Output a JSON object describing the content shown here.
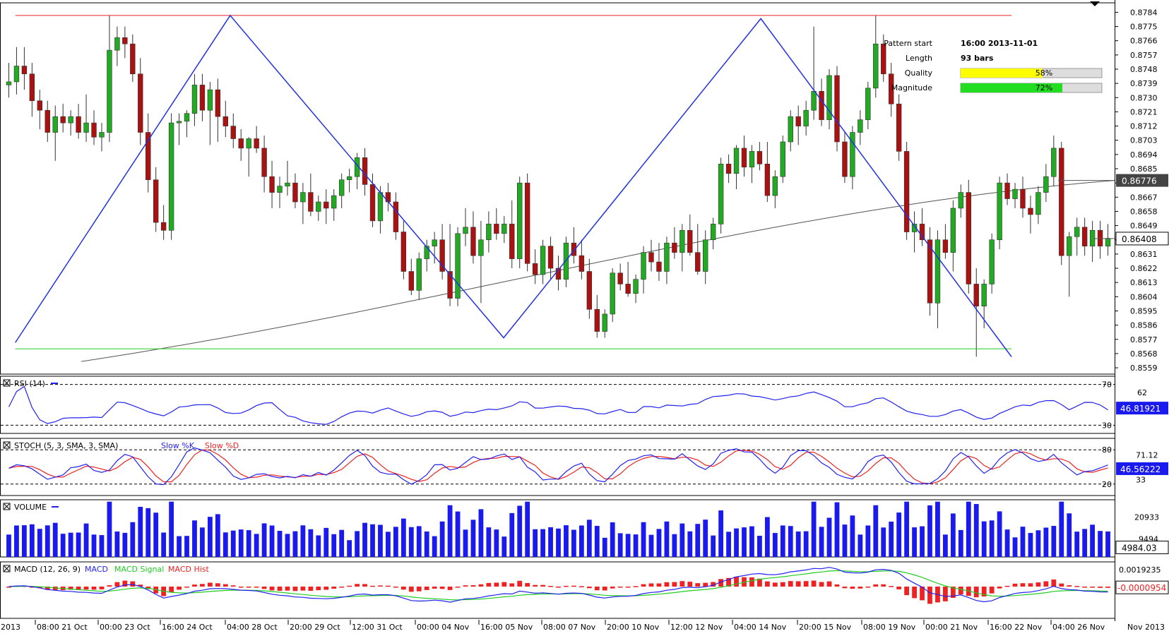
{
  "chart_data": {
    "type": "candlestick",
    "price_axis": {
      "ticks": [
        "0.8784",
        "0.8775",
        "0.8766",
        "0.8757",
        "0.8748",
        "0.8739",
        "0.8730",
        "0.8721",
        "0.8712",
        "0.8703",
        "0.8694",
        "0.8685",
        "0.8676",
        "0.8667",
        "0.8658",
        "0.8649",
        "0.8640",
        "0.8631",
        "0.8622",
        "0.8613",
        "0.8604",
        "0.8595",
        "0.8586",
        "0.8577",
        "0.8568",
        "0.8559"
      ],
      "range": [
        0.8555,
        0.879
      ],
      "current_price_label": "0.86408",
      "ma_label": "0.86776"
    },
    "time_axis": {
      "labels": [
        "2013",
        "08:00 21 Oct",
        "00:00 23 Oct",
        "16:00 24 Oct",
        "04:00 28 Oct",
        "20:00 29 Oct",
        "12:00 31 Oct",
        "00:00 04 Nov",
        "16:00 05 Nov",
        "08:00 07 Nov",
        "20:00 10 Nov",
        "12:00 12 Nov",
        "04:00 14 Nov",
        "20:00 15 Nov",
        "08:00 19 Nov",
        "00:00 21 Nov",
        "16:00 22 Nov",
        "04:00 26 Nov",
        "Nov 2013"
      ]
    },
    "pattern_info": {
      "rows": [
        {
          "label": "Pattern start",
          "value": "16:00 2013-11-01"
        },
        {
          "label": "Length",
          "value": "93 bars"
        },
        {
          "label": "Quality",
          "value": "58%",
          "fraction": 0.58,
          "color": "#ffff00"
        },
        {
          "label": "Magnitude",
          "value": "72%",
          "fraction": 0.72,
          "color": "#22dd22"
        }
      ]
    },
    "pattern": {
      "resistance": 0.8782,
      "support": 0.8571,
      "points": [
        [
          0.2,
          0.8575
        ],
        [
          6.8,
          0.8782
        ],
        [
          15.2,
          0.8578
        ],
        [
          23.1,
          0.878
        ],
        [
          30.8,
          0.8566
        ]
      ]
    },
    "candles": [
      {
        "o": 0.8738,
        "h": 0.8752,
        "l": 0.873,
        "c": 0.874
      },
      {
        "o": 0.874,
        "h": 0.8762,
        "l": 0.8732,
        "c": 0.875
      },
      {
        "o": 0.875,
        "h": 0.8762,
        "l": 0.8735,
        "c": 0.8745
      },
      {
        "o": 0.8745,
        "h": 0.8752,
        "l": 0.8718,
        "c": 0.8728
      },
      {
        "o": 0.8728,
        "h": 0.8735,
        "l": 0.871,
        "c": 0.8722
      },
      {
        "o": 0.8722,
        "h": 0.8728,
        "l": 0.8702,
        "c": 0.8708
      },
      {
        "o": 0.8708,
        "h": 0.8725,
        "l": 0.869,
        "c": 0.8718
      },
      {
        "o": 0.8718,
        "h": 0.8726,
        "l": 0.8708,
        "c": 0.8714
      },
      {
        "o": 0.8714,
        "h": 0.8722,
        "l": 0.8706,
        "c": 0.8718
      },
      {
        "o": 0.8718,
        "h": 0.8726,
        "l": 0.8704,
        "c": 0.8708
      },
      {
        "o": 0.8708,
        "h": 0.8732,
        "l": 0.8702,
        "c": 0.8714
      },
      {
        "o": 0.8714,
        "h": 0.8722,
        "l": 0.87,
        "c": 0.8705
      },
      {
        "o": 0.8705,
        "h": 0.8714,
        "l": 0.8696,
        "c": 0.8708
      },
      {
        "o": 0.8708,
        "h": 0.8782,
        "l": 0.8702,
        "c": 0.876
      },
      {
        "o": 0.876,
        "h": 0.8775,
        "l": 0.875,
        "c": 0.8768
      },
      {
        "o": 0.8768,
        "h": 0.8775,
        "l": 0.8755,
        "c": 0.8764
      },
      {
        "o": 0.8764,
        "h": 0.877,
        "l": 0.874,
        "c": 0.8745
      },
      {
        "o": 0.8745,
        "h": 0.8755,
        "l": 0.87,
        "c": 0.8708
      },
      {
        "o": 0.8708,
        "h": 0.872,
        "l": 0.867,
        "c": 0.8678
      },
      {
        "o": 0.8678,
        "h": 0.8686,
        "l": 0.8645,
        "c": 0.8651
      },
      {
        "o": 0.8651,
        "h": 0.8662,
        "l": 0.864,
        "c": 0.8646
      },
      {
        "o": 0.8646,
        "h": 0.872,
        "l": 0.864,
        "c": 0.8714
      },
      {
        "o": 0.8714,
        "h": 0.872,
        "l": 0.87,
        "c": 0.8715
      },
      {
        "o": 0.8715,
        "h": 0.8722,
        "l": 0.8705,
        "c": 0.872
      },
      {
        "o": 0.872,
        "h": 0.8745,
        "l": 0.8712,
        "c": 0.8738
      },
      {
        "o": 0.8738,
        "h": 0.8745,
        "l": 0.8715,
        "c": 0.8722
      },
      {
        "o": 0.8722,
        "h": 0.874,
        "l": 0.87,
        "c": 0.8735
      },
      {
        "o": 0.8735,
        "h": 0.8742,
        "l": 0.8702,
        "c": 0.8718
      },
      {
        "o": 0.8718,
        "h": 0.8728,
        "l": 0.8705,
        "c": 0.8712
      },
      {
        "o": 0.8712,
        "h": 0.872,
        "l": 0.8698,
        "c": 0.8704
      },
      {
        "o": 0.8704,
        "h": 0.871,
        "l": 0.869,
        "c": 0.8698
      },
      {
        "o": 0.8698,
        "h": 0.8705,
        "l": 0.868,
        "c": 0.8704
      },
      {
        "o": 0.8704,
        "h": 0.8712,
        "l": 0.8695,
        "c": 0.8698
      },
      {
        "o": 0.8698,
        "h": 0.8706,
        "l": 0.867,
        "c": 0.868
      },
      {
        "o": 0.868,
        "h": 0.869,
        "l": 0.866,
        "c": 0.867
      },
      {
        "o": 0.867,
        "h": 0.868,
        "l": 0.866,
        "c": 0.8674
      },
      {
        "o": 0.8674,
        "h": 0.869,
        "l": 0.8668,
        "c": 0.8676
      },
      {
        "o": 0.8676,
        "h": 0.8682,
        "l": 0.866,
        "c": 0.8664
      },
      {
        "o": 0.8664,
        "h": 0.8676,
        "l": 0.865,
        "c": 0.867
      },
      {
        "o": 0.867,
        "h": 0.8682,
        "l": 0.8655,
        "c": 0.8658
      },
      {
        "o": 0.8658,
        "h": 0.8668,
        "l": 0.8652,
        "c": 0.8664
      },
      {
        "o": 0.8664,
        "h": 0.8672,
        "l": 0.865,
        "c": 0.866
      },
      {
        "o": 0.866,
        "h": 0.8672,
        "l": 0.8652,
        "c": 0.8668
      },
      {
        "o": 0.8668,
        "h": 0.8682,
        "l": 0.866,
        "c": 0.8678
      },
      {
        "o": 0.8678,
        "h": 0.8685,
        "l": 0.867,
        "c": 0.868
      },
      {
        "o": 0.868,
        "h": 0.8695,
        "l": 0.8672,
        "c": 0.8692
      },
      {
        "o": 0.8692,
        "h": 0.8698,
        "l": 0.8668,
        "c": 0.8675
      },
      {
        "o": 0.8675,
        "h": 0.8682,
        "l": 0.8648,
        "c": 0.8652
      },
      {
        "o": 0.8652,
        "h": 0.8674,
        "l": 0.8644,
        "c": 0.867
      },
      {
        "o": 0.867,
        "h": 0.8676,
        "l": 0.8658,
        "c": 0.8664
      },
      {
        "o": 0.8664,
        "h": 0.867,
        "l": 0.864,
        "c": 0.8645
      },
      {
        "o": 0.8645,
        "h": 0.8652,
        "l": 0.8615,
        "c": 0.862
      },
      {
        "o": 0.862,
        "h": 0.8628,
        "l": 0.8605,
        "c": 0.8608
      },
      {
        "o": 0.8608,
        "h": 0.8632,
        "l": 0.8602,
        "c": 0.8628
      },
      {
        "o": 0.8628,
        "h": 0.864,
        "l": 0.862,
        "c": 0.8636
      },
      {
        "o": 0.8636,
        "h": 0.8645,
        "l": 0.8625,
        "c": 0.864
      },
      {
        "o": 0.864,
        "h": 0.865,
        "l": 0.8615,
        "c": 0.862
      },
      {
        "o": 0.862,
        "h": 0.865,
        "l": 0.8598,
        "c": 0.8603
      },
      {
        "o": 0.8603,
        "h": 0.8648,
        "l": 0.8598,
        "c": 0.8644
      },
      {
        "o": 0.8644,
        "h": 0.866,
        "l": 0.8636,
        "c": 0.8648
      },
      {
        "o": 0.8648,
        "h": 0.8658,
        "l": 0.8625,
        "c": 0.863
      },
      {
        "o": 0.863,
        "h": 0.8652,
        "l": 0.86,
        "c": 0.864
      },
      {
        "o": 0.864,
        "h": 0.8658,
        "l": 0.8632,
        "c": 0.865
      },
      {
        "o": 0.865,
        "h": 0.866,
        "l": 0.864,
        "c": 0.8644
      },
      {
        "o": 0.8644,
        "h": 0.8655,
        "l": 0.8638,
        "c": 0.865
      },
      {
        "o": 0.865,
        "h": 0.8665,
        "l": 0.8622,
        "c": 0.8628
      },
      {
        "o": 0.8628,
        "h": 0.868,
        "l": 0.8622,
        "c": 0.8676
      },
      {
        "o": 0.8676,
        "h": 0.8682,
        "l": 0.862,
        "c": 0.8625
      },
      {
        "o": 0.8625,
        "h": 0.8634,
        "l": 0.8612,
        "c": 0.8618
      },
      {
        "o": 0.8618,
        "h": 0.864,
        "l": 0.8612,
        "c": 0.8636
      },
      {
        "o": 0.8636,
        "h": 0.8642,
        "l": 0.8615,
        "c": 0.8622
      },
      {
        "o": 0.8622,
        "h": 0.863,
        "l": 0.8608,
        "c": 0.8615
      },
      {
        "o": 0.8615,
        "h": 0.8642,
        "l": 0.861,
        "c": 0.8638
      },
      {
        "o": 0.8638,
        "h": 0.8648,
        "l": 0.8625,
        "c": 0.863
      },
      {
        "o": 0.863,
        "h": 0.864,
        "l": 0.8615,
        "c": 0.862
      },
      {
        "o": 0.862,
        "h": 0.8628,
        "l": 0.859,
        "c": 0.8596
      },
      {
        "o": 0.8596,
        "h": 0.8605,
        "l": 0.8578,
        "c": 0.8582
      },
      {
        "o": 0.8582,
        "h": 0.8596,
        "l": 0.8578,
        "c": 0.8593
      },
      {
        "o": 0.8593,
        "h": 0.8622,
        "l": 0.8588,
        "c": 0.8619
      },
      {
        "o": 0.8619,
        "h": 0.8625,
        "l": 0.8608,
        "c": 0.8612
      },
      {
        "o": 0.8612,
        "h": 0.8626,
        "l": 0.8604,
        "c": 0.8606
      },
      {
        "o": 0.8606,
        "h": 0.8618,
        "l": 0.86,
        "c": 0.8615
      },
      {
        "o": 0.8615,
        "h": 0.8636,
        "l": 0.8606,
        "c": 0.8632
      },
      {
        "o": 0.8632,
        "h": 0.864,
        "l": 0.862,
        "c": 0.8626
      },
      {
        "o": 0.8626,
        "h": 0.8638,
        "l": 0.8614,
        "c": 0.862
      },
      {
        "o": 0.862,
        "h": 0.8642,
        "l": 0.8612,
        "c": 0.8638
      },
      {
        "o": 0.8638,
        "h": 0.8648,
        "l": 0.8628,
        "c": 0.8632
      },
      {
        "o": 0.8632,
        "h": 0.865,
        "l": 0.862,
        "c": 0.8646
      },
      {
        "o": 0.8646,
        "h": 0.8656,
        "l": 0.863,
        "c": 0.8632
      },
      {
        "o": 0.8632,
        "h": 0.865,
        "l": 0.8618,
        "c": 0.862
      },
      {
        "o": 0.862,
        "h": 0.8646,
        "l": 0.8612,
        "c": 0.864
      },
      {
        "o": 0.864,
        "h": 0.8654,
        "l": 0.8634,
        "c": 0.865
      },
      {
        "o": 0.865,
        "h": 0.8692,
        "l": 0.8644,
        "c": 0.8688
      },
      {
        "o": 0.8688,
        "h": 0.8694,
        "l": 0.8676,
        "c": 0.8682
      },
      {
        "o": 0.8682,
        "h": 0.87,
        "l": 0.8672,
        "c": 0.8698
      },
      {
        "o": 0.8698,
        "h": 0.8706,
        "l": 0.868,
        "c": 0.8686
      },
      {
        "o": 0.8686,
        "h": 0.87,
        "l": 0.8676,
        "c": 0.8696
      },
      {
        "o": 0.8696,
        "h": 0.8702,
        "l": 0.8684,
        "c": 0.8688
      },
      {
        "o": 0.8688,
        "h": 0.8702,
        "l": 0.8664,
        "c": 0.8668
      },
      {
        "o": 0.8668,
        "h": 0.8684,
        "l": 0.866,
        "c": 0.868
      },
      {
        "o": 0.868,
        "h": 0.8706,
        "l": 0.8676,
        "c": 0.8702
      },
      {
        "o": 0.8702,
        "h": 0.8722,
        "l": 0.8696,
        "c": 0.8718
      },
      {
        "o": 0.8718,
        "h": 0.8725,
        "l": 0.87,
        "c": 0.8712
      },
      {
        "o": 0.8712,
        "h": 0.8728,
        "l": 0.8706,
        "c": 0.8722
      },
      {
        "o": 0.8722,
        "h": 0.8775,
        "l": 0.8716,
        "c": 0.8734
      },
      {
        "o": 0.8734,
        "h": 0.8742,
        "l": 0.8712,
        "c": 0.8716
      },
      {
        "o": 0.8716,
        "h": 0.8748,
        "l": 0.871,
        "c": 0.8744
      },
      {
        "o": 0.8744,
        "h": 0.875,
        "l": 0.8696,
        "c": 0.8702
      },
      {
        "o": 0.8702,
        "h": 0.8708,
        "l": 0.8676,
        "c": 0.868
      },
      {
        "o": 0.868,
        "h": 0.8712,
        "l": 0.8672,
        "c": 0.8708
      },
      {
        "o": 0.8708,
        "h": 0.8722,
        "l": 0.87,
        "c": 0.8716
      },
      {
        "o": 0.8716,
        "h": 0.874,
        "l": 0.871,
        "c": 0.8736
      },
      {
        "o": 0.8736,
        "h": 0.8782,
        "l": 0.873,
        "c": 0.8764
      },
      {
        "o": 0.8764,
        "h": 0.877,
        "l": 0.874,
        "c": 0.8745
      },
      {
        "o": 0.8745,
        "h": 0.8752,
        "l": 0.8718,
        "c": 0.8726
      },
      {
        "o": 0.8726,
        "h": 0.8732,
        "l": 0.869,
        "c": 0.8696
      },
      {
        "o": 0.8696,
        "h": 0.8702,
        "l": 0.864,
        "c": 0.8645
      },
      {
        "o": 0.8645,
        "h": 0.8658,
        "l": 0.8632,
        "c": 0.865
      },
      {
        "o": 0.865,
        "h": 0.866,
        "l": 0.8636,
        "c": 0.864
      },
      {
        "o": 0.864,
        "h": 0.8648,
        "l": 0.8592,
        "c": 0.86
      },
      {
        "o": 0.86,
        "h": 0.8646,
        "l": 0.8584,
        "c": 0.864
      },
      {
        "o": 0.864,
        "h": 0.865,
        "l": 0.8628,
        "c": 0.8632
      },
      {
        "o": 0.8632,
        "h": 0.8665,
        "l": 0.862,
        "c": 0.866
      },
      {
        "o": 0.866,
        "h": 0.8675,
        "l": 0.8654,
        "c": 0.867
      },
      {
        "o": 0.867,
        "h": 0.8678,
        "l": 0.8606,
        "c": 0.8612
      },
      {
        "o": 0.8612,
        "h": 0.8622,
        "l": 0.8566,
        "c": 0.8598
      },
      {
        "o": 0.8598,
        "h": 0.8615,
        "l": 0.8584,
        "c": 0.8612
      },
      {
        "o": 0.8612,
        "h": 0.8644,
        "l": 0.8606,
        "c": 0.864
      },
      {
        "o": 0.864,
        "h": 0.868,
        "l": 0.8634,
        "c": 0.8676
      },
      {
        "o": 0.8676,
        "h": 0.8682,
        "l": 0.8662,
        "c": 0.8666
      },
      {
        "o": 0.8666,
        "h": 0.8676,
        "l": 0.866,
        "c": 0.8672
      },
      {
        "o": 0.8672,
        "h": 0.868,
        "l": 0.8654,
        "c": 0.866
      },
      {
        "o": 0.866,
        "h": 0.8668,
        "l": 0.8644,
        "c": 0.8656
      },
      {
        "o": 0.8656,
        "h": 0.8674,
        "l": 0.865,
        "c": 0.867
      },
      {
        "o": 0.867,
        "h": 0.8688,
        "l": 0.8664,
        "c": 0.868
      },
      {
        "o": 0.868,
        "h": 0.8706,
        "l": 0.8674,
        "c": 0.8698
      },
      {
        "o": 0.8698,
        "h": 0.8702,
        "l": 0.8624,
        "c": 0.863
      },
      {
        "o": 0.863,
        "h": 0.8645,
        "l": 0.8604,
        "c": 0.8642
      },
      {
        "o": 0.8642,
        "h": 0.8654,
        "l": 0.863,
        "c": 0.8648
      },
      {
        "o": 0.8648,
        "h": 0.8654,
        "l": 0.863,
        "c": 0.8636
      },
      {
        "o": 0.8636,
        "h": 0.8652,
        "l": 0.8626,
        "c": 0.8646
      },
      {
        "o": 0.8646,
        "h": 0.8652,
        "l": 0.8628,
        "c": 0.8636
      },
      {
        "o": 0.8636,
        "h": 0.865,
        "l": 0.863,
        "c": 0.8641
      }
    ],
    "ma_start": 0.8563,
    "ma_end": 0.86776,
    "indicators": {
      "rsi": {
        "label": "RSI (14)",
        "levels": [
          70,
          30
        ],
        "axis_labels": [
          "70",
          "62",
          "30"
        ],
        "value_label": "46.81921",
        "range": [
          22,
          78
        ]
      },
      "stoch": {
        "label": "STOCH (5, 3, SMA, 3, SMA)",
        "legend": [
          {
            "name": "Slow %K",
            "color": "#2222ee"
          },
          {
            "name": "Slow %D",
            "color": "#ee2222"
          }
        ],
        "levels": [
          80,
          20
        ],
        "axis_labels": [
          "80",
          "71.12",
          "33",
          "20"
        ],
        "value_label": "46.56222",
        "range": [
          0,
          100
        ]
      },
      "volume": {
        "label": "VOLUME",
        "axis_labels": [
          "20933",
          "9494"
        ],
        "value_label": "4984.03",
        "range": [
          0,
          30000
        ]
      },
      "macd": {
        "label": "MACD (12, 26, 9)",
        "legend": [
          {
            "name": "MACD",
            "color": "#2222ee"
          },
          {
            "name": "MACD Signal",
            "color": "#22cc22"
          },
          {
            "name": "MACD Hist",
            "color": "#ee2222"
          }
        ],
        "axis_labels": [
          "0.0019235",
          "-0.0000954"
        ],
        "value_label": "-0.0000954",
        "range": [
          -0.0036,
          0.0028
        ]
      }
    }
  }
}
